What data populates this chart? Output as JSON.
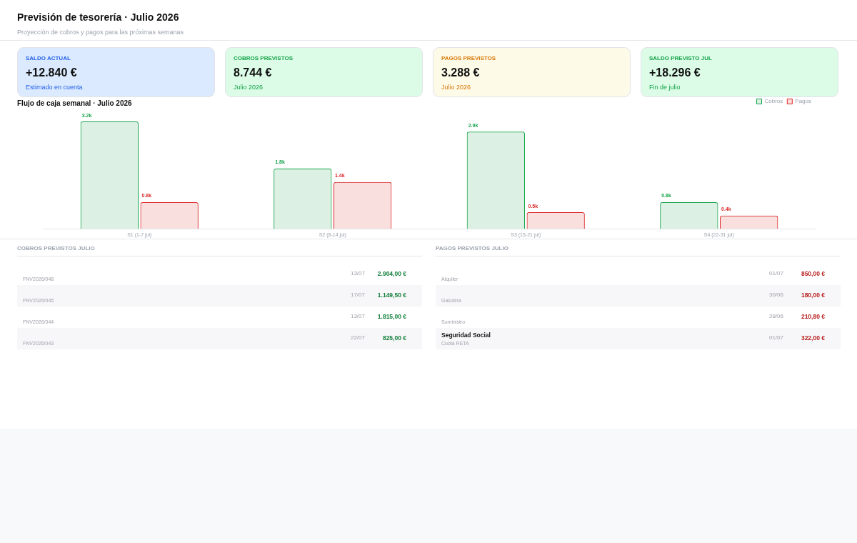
{
  "chart_data": [
    {
      "type": "other",
      "title": "Previsión de tesorería · Julio 2026",
      "subtitle": "Proyección de cobros y pagos para las próximas semanas",
      "annotations": [
        "SALDO ACTUAL",
        "+12.840 €",
        "Estimado en cuenta",
        "COBROS PREVISTOS",
        "8.744 €",
        "Julio 2026",
        "PAGOS PREVISTOS",
        "3.288 €",
        "Julio 2026",
        "SALDO PREVISTO JUL",
        "+18.296 €",
        "Fin de julio"
      ]
    },
    {
      "type": "bar",
      "title": "Flujo de caja semanal · Julio 2026",
      "categories": [
        "S1 (1-7 jul)",
        "S2 (8-14 jul)",
        "S3 (15-21 jul)",
        "S4 (22-31 jul)"
      ],
      "series": [
        {
          "name": "Cobros",
          "color": "#16a34a",
          "values": [
            3200,
            1800,
            2900,
            800
          ],
          "value_labels": [
            "3.2k",
            "1.8k",
            "2.9k",
            "0.8k"
          ]
        },
        {
          "name": "Pagos",
          "color": "#dc2626",
          "values": [
            800,
            1400,
            500,
            400
          ],
          "value_labels": [
            "0.8k",
            "1.4k",
            "0.5k",
            "0.4k"
          ]
        }
      ],
      "legend": "top right",
      "grid": false
    },
    {
      "type": "other",
      "title": "COBROS PREVISTOS JULIO",
      "categories": [
        null,
        null,
        null,
        null
      ],
      "annotations": [
        "FNV2026/048",
        "13/07",
        "2.904,00 €",
        "FNV2026/045",
        "17/07",
        "1.149,50 €",
        "FNV2026/044",
        "13/07",
        "1.815,00 €",
        "FNV2026/043",
        "22/07",
        "825,00 €"
      ]
    },
    {
      "type": "other",
      "title": "PAGOS PREVISTOS JULIO",
      "categories": [
        null,
        null,
        null,
        "Seguridad Social"
      ],
      "annotations": [
        "Alquiler",
        "01/07",
        "850,00 €",
        "Gasolina",
        "30/06",
        "180,00 €",
        "Suministro",
        "28/06",
        "210,80 €",
        "Cuota RETA",
        "01/07",
        "322,00 €"
      ]
    }
  ]
}
